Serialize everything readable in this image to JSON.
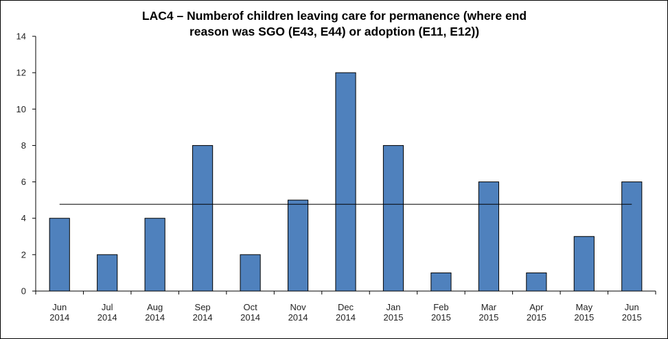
{
  "chart_data": {
    "type": "bar",
    "title_lines": [
      "LAC4 – Numberof children leaving care for permanence (where end",
      "reason was SGO (E43, E44) or adoption (E11, E12))"
    ],
    "categories": [
      [
        "Jun",
        "2014"
      ],
      [
        "Jul",
        "2014"
      ],
      [
        "Aug",
        "2014"
      ],
      [
        "Sep",
        "2014"
      ],
      [
        "Oct",
        "2014"
      ],
      [
        "Nov",
        "2014"
      ],
      [
        "Dec",
        "2014"
      ],
      [
        "Jan",
        "2015"
      ],
      [
        "Feb",
        "2015"
      ],
      [
        "Mar",
        "2015"
      ],
      [
        "Apr",
        "2015"
      ],
      [
        "May",
        "2015"
      ],
      [
        "Jun",
        "2015"
      ]
    ],
    "values": [
      4,
      2,
      4,
      8,
      2,
      5,
      12,
      8,
      1,
      6,
      1,
      3,
      6
    ],
    "average_line": 4.77,
    "ylim": [
      0,
      14
    ],
    "yticks": [
      0,
      2,
      4,
      6,
      8,
      10,
      12,
      14
    ],
    "bar_color": "#4f81bd",
    "grid": false,
    "legend": "none"
  }
}
